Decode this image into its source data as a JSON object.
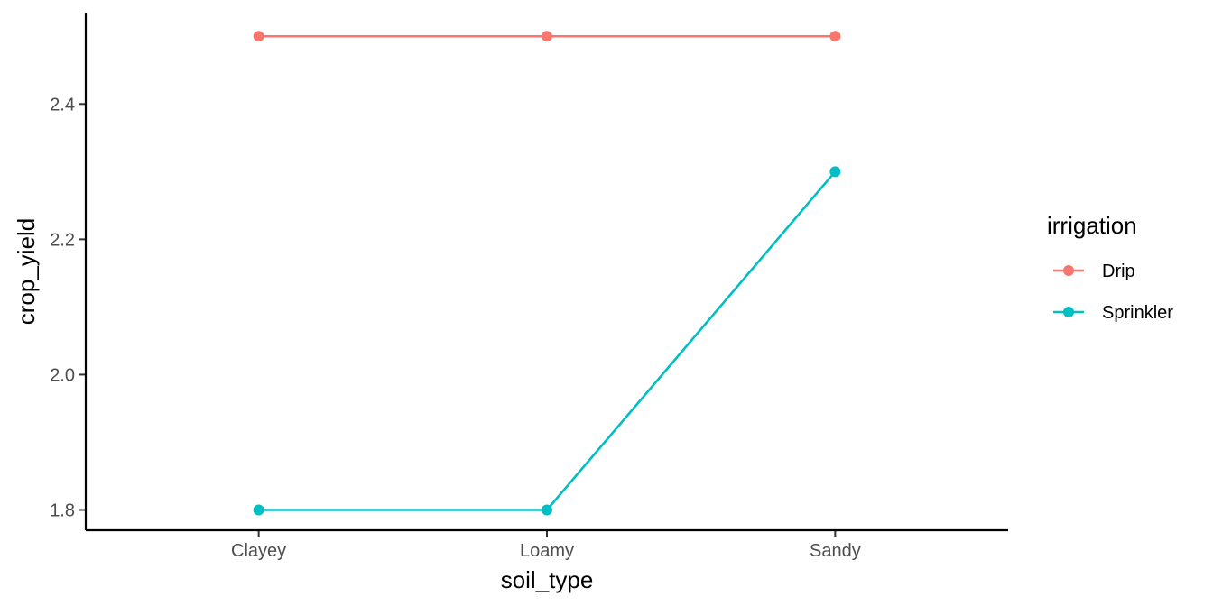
{
  "chart_data": {
    "type": "line",
    "categories": [
      "Clayey",
      "Loamy",
      "Sandy"
    ],
    "xlabel": "soil_type",
    "ylabel": "crop_yield",
    "ylim": [
      1.77,
      2.535
    ],
    "yticks": [
      1.8,
      2.0,
      2.2,
      2.4
    ],
    "ytick_labels": [
      "1.8",
      "2.0",
      "2.2",
      "2.4"
    ],
    "grid": false,
    "legend": {
      "title": "irrigation",
      "position": "right"
    },
    "series": [
      {
        "name": "Drip",
        "color": "#F8766D",
        "values": [
          2.5,
          2.5,
          2.5
        ]
      },
      {
        "name": "Sprinkler",
        "color": "#00BFC4",
        "values": [
          1.8,
          1.8,
          2.3
        ]
      }
    ]
  }
}
